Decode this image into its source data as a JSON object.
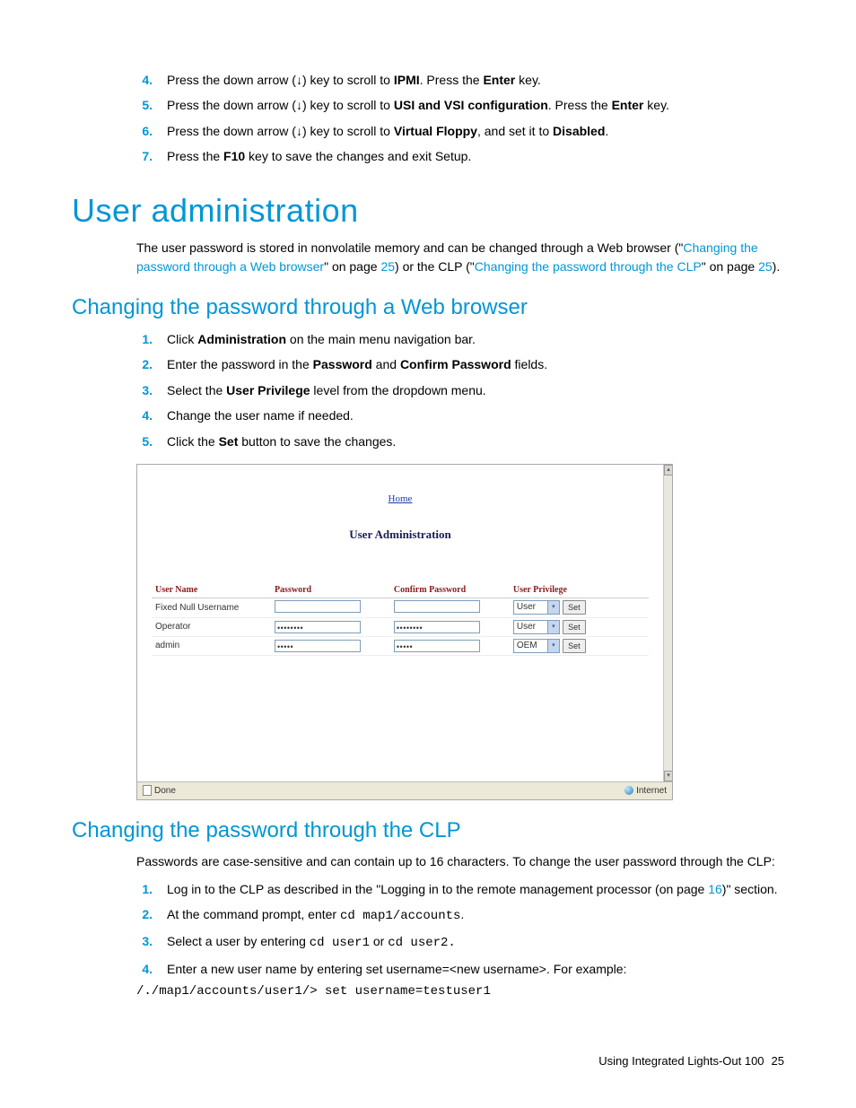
{
  "top_steps": [
    {
      "num": "4.",
      "html": "Press the down arrow (↓) key to scroll to <b>IPMI</b>. Press the <b>Enter</b> key."
    },
    {
      "num": "5.",
      "html": "Press the down arrow (↓) key to scroll to <b>USI and VSI configuration</b>. Press the <b>Enter</b> key."
    },
    {
      "num": "6.",
      "html": "Press the down arrow (↓) key to scroll to <b>Virtual Floppy</b>, and set it to <b>Disabled</b>."
    },
    {
      "num": "7.",
      "html": "Press the <b>F10</b> key to save the changes and exit Setup."
    }
  ],
  "h1": "User administration",
  "intro": {
    "pre": "The user password is stored in nonvolatile memory and can be changed through a Web browser (\"",
    "link1": "Changing the password through a Web browser",
    "mid1": "\" on page ",
    "pg1": "25",
    "mid2": ") or the CLP (\"",
    "link2": "Changing the password through the CLP",
    "mid3": "\" on page ",
    "pg2": "25",
    "post": ")."
  },
  "h2a": "Changing the password through a Web browser",
  "web_steps": [
    {
      "num": "1.",
      "html": "Click <b>Administration</b> on the main menu navigation bar."
    },
    {
      "num": "2.",
      "html": "Enter the password in the <b>Password</b> and <b>Confirm Password</b> fields."
    },
    {
      "num": "3.",
      "html": "Select the <b>User Privilege</b> level from the dropdown menu."
    },
    {
      "num": "4.",
      "html": "Change the user name if needed."
    },
    {
      "num": "5.",
      "html": "Click the <b>Set</b> button to save the changes."
    }
  ],
  "screenshot": {
    "home_link": "Home",
    "title": "User Administration",
    "columns": [
      "User Name",
      "Password",
      "Confirm Password",
      "User Privilege"
    ],
    "rows": [
      {
        "name": "Fixed Null Username",
        "pw": "",
        "cpw": "",
        "priv": "User",
        "set": "Set"
      },
      {
        "name": "Operator",
        "pw": "••••••••",
        "cpw": "••••••••",
        "priv": "User",
        "set": "Set"
      },
      {
        "name": "admin",
        "pw": "•••••",
        "cpw": "•••••",
        "priv": "OEM",
        "set": "Set"
      }
    ],
    "status_done": "Done",
    "status_net": "Internet"
  },
  "h2b": "Changing the password through the CLP",
  "clp_intro": "Passwords are case-sensitive and can contain up to 16 characters. To change the user password through the CLP:",
  "clp_steps": [
    {
      "num": "1.",
      "html": "Log in to the CLP as described in the \"Logging in to the remote management processor (on page <span class='link'>16</span>)\" section."
    },
    {
      "num": "2.",
      "html": "At the command prompt, enter <span class='code'>cd map1/accounts</span>."
    },
    {
      "num": "3.",
      "html": "Select a user by entering <span class='code'>cd user1</span> or <span class='code'>cd user2.</span>"
    },
    {
      "num": "4.",
      "html": "Enter a new user name by entering set username=&lt;new username&gt;. For example:"
    }
  ],
  "clp_codeblock": "/./map1/accounts/user1/> set username=testuser1",
  "footer_text": "Using Integrated Lights-Out 100",
  "footer_page": "25"
}
